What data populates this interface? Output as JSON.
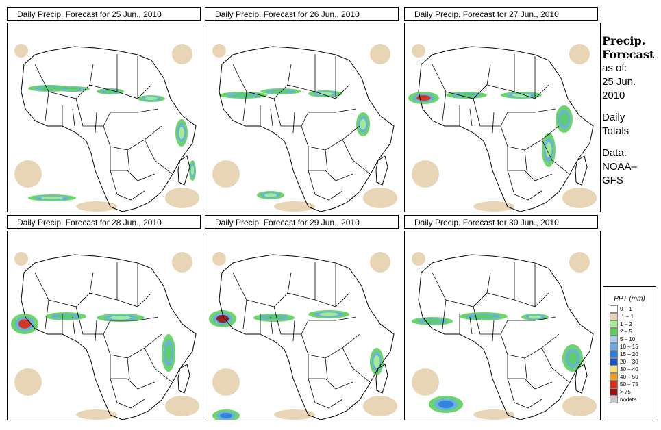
{
  "panels": [
    {
      "title": "Daily Precip. Forecast for  25 Jun., 2010"
    },
    {
      "title": "Daily Precip. Forecast for  26 Jun., 2010"
    },
    {
      "title": "Daily Precip. Forecast for  27 Jun., 2010"
    },
    {
      "title": "Daily Precip. Forecast for  28 Jun., 2010"
    },
    {
      "title": "Daily Precip. Forecast for  29 Jun., 2010"
    },
    {
      "title": "Daily Precip. Forecast for  30 Jun., 2010"
    }
  ],
  "sidebar": {
    "heading_line1": "Precip.",
    "heading_line2": "Forecast",
    "asof_line1": "as of:",
    "asof_line2": "25 Jun.",
    "asof_line3": "2010",
    "totals_line1": "Daily",
    "totals_line2": "Totals",
    "data_line1": "Data:",
    "data_line2": "NOAA–",
    "data_line3": "GFS"
  },
  "legend": {
    "title": "PPT (mm)",
    "items": [
      {
        "label": "0 – 1",
        "color": "#ffffff"
      },
      {
        "label": ".1 – 1",
        "color": "#e8d5b5"
      },
      {
        "label": "1 – 2",
        "color": "#a8ee90"
      },
      {
        "label": "2 – 5",
        "color": "#5ad05a"
      },
      {
        "label": "5 – 10",
        "color": "#a7cdf0"
      },
      {
        "label": "10 – 15",
        "color": "#6aaee8"
      },
      {
        "label": "15 – 20",
        "color": "#2e7de0"
      },
      {
        "label": "20 – 30",
        "color": "#1f4fc8"
      },
      {
        "label": "30 – 40",
        "color": "#f8e070"
      },
      {
        "label": "40 – 50",
        "color": "#f0a020"
      },
      {
        "label": "50 – 75",
        "color": "#e02810"
      },
      {
        "label": "> 75",
        "color": "#a01010"
      },
      {
        "label": "nodata",
        "color": "#c8c8c8"
      }
    ]
  }
}
